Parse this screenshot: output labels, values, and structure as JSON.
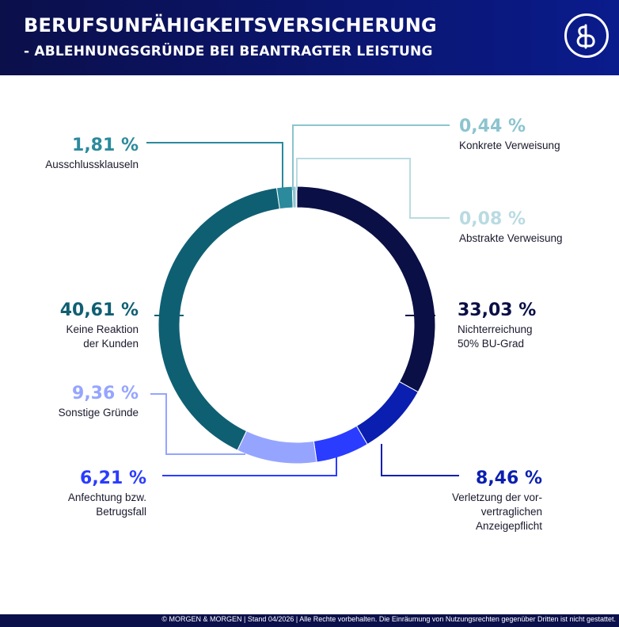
{
  "header": {
    "title": "BERUFSUNFÄHIGKEITSVERSICHERUNG",
    "subtitle": "- ABLEHNUNGSGRÜNDE BEI BEANTRAGTER LEISTUNG",
    "logo_icon": "ampersand-logo-icon",
    "colors": {
      "background_left": "#0b0f4a",
      "background_right": "#0a1b8c"
    }
  },
  "footer": {
    "text": "© MORGEN & MORGEN | Stand 04/2026 | Alle Rechte vorbehalten. Die Einräumung von Nutzungsrechten gegenüber Dritten ist nicht gestattet."
  },
  "chart_data": {
    "type": "pie",
    "donut": true,
    "slices": [
      {
        "value_label": "33,03 %",
        "value": 33.03,
        "label_lines": [
          "Nichterreichung",
          "50% BU-Grad"
        ],
        "color": "#0a0f45"
      },
      {
        "value_label": "8,46 %",
        "value": 8.46,
        "label_lines": [
          "Verletzung der vor-",
          "vertraglichen",
          "Anzeigepflicht"
        ],
        "color": "#0a1fb0"
      },
      {
        "value_label": "6,21 %",
        "value": 6.21,
        "label_lines": [
          "Anfechtung bzw.",
          "Betrugsfall"
        ],
        "color": "#2a3cff"
      },
      {
        "value_label": "9,36 %",
        "value": 9.36,
        "label_lines": [
          "Sonstige Gründe"
        ],
        "color": "#95a5ff"
      },
      {
        "value_label": "40,61 %",
        "value": 40.61,
        "label_lines": [
          "Keine Reaktion",
          "der Kunden"
        ],
        "color": "#0f5f73"
      },
      {
        "value_label": "1,81 %",
        "value": 1.81,
        "label_lines": [
          "Ausschlussklauseln"
        ],
        "color": "#2b8a9c"
      },
      {
        "value_label": "0,44 %",
        "value": 0.44,
        "label_lines": [
          "Konkrete Verweisung"
        ],
        "color": "#8cc4cf"
      },
      {
        "value_label": "0,08 %",
        "value": 0.08,
        "label_lines": [
          "Abstrakte Verweisung"
        ],
        "color": "#b9dbe2"
      }
    ]
  }
}
